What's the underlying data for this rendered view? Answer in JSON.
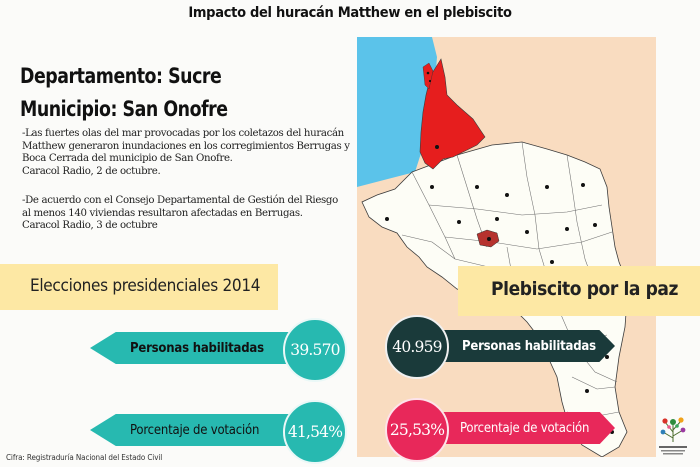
{
  "title": "Impacto del huracán Matthew en el plebiscito",
  "departamento": "Departamento: Sucre",
  "municipio": "Municipio: San Onofre",
  "news": [
    {
      "lines": [
        "-Las fuertes olas del mar provocadas por los coletazos del huracán",
        "Matthew generaron inundaciones en los corregimientos Berrugas y",
        "Boca Cerrada del municipio de San Onofre.",
        "Caracol Radio, 2 de octubre."
      ]
    },
    {
      "lines": [
        "-De acuerdo con el Consejo Departamental de Gestión del Riesgo",
        "al menos 140 viviendas resultaron afectadas en Berrugas.",
        "Caracol Radio, 3 de octubre"
      ]
    }
  ],
  "elecciones": {
    "heading": "Elecciones presidenciales 2014",
    "personas_label": "Personas habilitadas",
    "personas_value": "39.570",
    "porcentaje_label": "Porcentaje de votación",
    "porcentaje_value": "41,54%"
  },
  "plebiscito": {
    "heading": "Plebiscito por la paz",
    "personas_label": "Personas habilitadas",
    "personas_value": "40.959",
    "porcentaje_label": "Porcentaje de votación",
    "porcentaje_value": "25,53%"
  },
  "source": "Cifra: Registraduría Nacional del Estado Civil",
  "colors": {
    "teal": "#27b9b0",
    "dark": "#1a3a3a",
    "red": "#e8285a",
    "band": "#fde8a4",
    "map_highlight": "#e61e1e",
    "sea": "#5bc3ea"
  }
}
